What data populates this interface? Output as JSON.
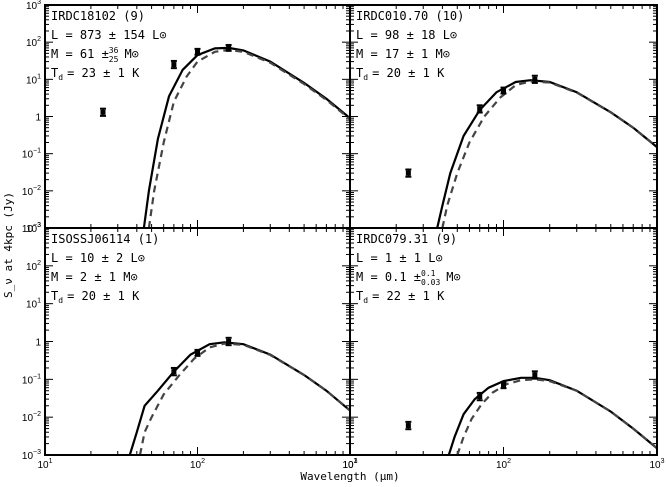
{
  "figure": {
    "xlabel": "Wavelength (μm)",
    "ylabel": "S_ν at 4kpc (Jy)"
  },
  "colors": {
    "solid": "#000000",
    "dashed": "#444444",
    "frame": "#000000"
  },
  "chart_data": [
    {
      "type": "line",
      "panel": "top-left",
      "title": "",
      "xscale": "log",
      "yscale": "log",
      "xlim": [
        10,
        1000
      ],
      "ylim": [
        0.001,
        1000
      ],
      "annotations": {
        "name": "IRDC18102 (9)",
        "L": "L = 873 ± 154 L⊙",
        "M_main": "M = 61 ±",
        "M_up": "36",
        "M_down": "25",
        "M_unit": "M⊙",
        "Td": "T",
        "Td_sub": "d",
        "Td_val": "= 23 ± 1 K"
      },
      "points": [
        {
          "x": 24,
          "y": 1.3,
          "yerr_factor": 1.25
        },
        {
          "x": 70,
          "y": 25,
          "yerr_factor": 1.25
        },
        {
          "x": 100,
          "y": 55,
          "yerr_factor": 1.2
        },
        {
          "x": 160,
          "y": 70,
          "yerr_factor": 1.2
        }
      ],
      "series": [
        {
          "style": "solid",
          "x": [
            44.5,
            48,
            55,
            65,
            80,
            100,
            130,
            160,
            200,
            300,
            500,
            700,
            1000
          ],
          "y": [
            0.001,
            0.01,
            0.25,
            3.5,
            18,
            45,
            68,
            70,
            60,
            30,
            8,
            3,
            0.9
          ]
        },
        {
          "style": "dashed",
          "x": [
            48,
            52,
            60,
            70,
            85,
            100,
            130,
            160,
            200,
            300,
            500,
            700,
            1000
          ],
          "y": [
            0.001,
            0.01,
            0.2,
            2.5,
            12,
            30,
            55,
            62,
            55,
            28,
            7.5,
            2.8,
            0.85
          ]
        }
      ]
    },
    {
      "type": "line",
      "panel": "top-right",
      "title": "",
      "xscale": "log",
      "yscale": "log",
      "xlim": [
        10,
        1000
      ],
      "ylim": [
        0.001,
        1000
      ],
      "annotations": {
        "name": "IRDC010.70 (10)",
        "L": "L = 98 ± 18 L⊙",
        "M_main": "M = 17 ± 1 M⊙",
        "M_up": "",
        "M_down": "",
        "M_unit": "",
        "Td": "T",
        "Td_sub": "d",
        "Td_val": "= 20 ± 1 K"
      },
      "points": [
        {
          "x": 24,
          "y": 0.03,
          "yerr_factor": 1.25
        },
        {
          "x": 70,
          "y": 1.6,
          "yerr_factor": 1.25
        },
        {
          "x": 100,
          "y": 5,
          "yerr_factor": 1.2
        },
        {
          "x": 160,
          "y": 10,
          "yerr_factor": 1.25
        }
      ],
      "series": [
        {
          "style": "solid",
          "x": [
            37,
            40,
            45,
            55,
            70,
            90,
            120,
            150,
            200,
            300,
            500,
            700,
            1000
          ],
          "y": [
            0.001,
            0.004,
            0.03,
            0.3,
            1.5,
            4.5,
            8.5,
            9.5,
            8.5,
            4.5,
            1.3,
            0.5,
            0.15
          ]
        },
        {
          "style": "dashed",
          "x": [
            40,
            43,
            50,
            60,
            75,
            95,
            120,
            150,
            200,
            300,
            500,
            700,
            1000
          ],
          "y": [
            0.001,
            0.004,
            0.03,
            0.2,
            1.0,
            3.2,
            7.0,
            8.8,
            8.2,
            4.4,
            1.3,
            0.5,
            0.15
          ]
        }
      ]
    },
    {
      "type": "line",
      "panel": "bottom-left",
      "title": "",
      "xscale": "log",
      "yscale": "log",
      "xlim": [
        10,
        1000
      ],
      "ylim": [
        0.001,
        1000
      ],
      "annotations": {
        "name": "ISOSSJ06114 (1)",
        "L": "L = 10 ± 2 L⊙",
        "M_main": "M = 2 ± 1 M⊙",
        "M_up": "",
        "M_down": "",
        "M_unit": "",
        "Td": "T",
        "Td_sub": "d",
        "Td_val": "= 20 ± 1 K"
      },
      "points": [
        {
          "x": 70,
          "y": 0.16,
          "yerr_factor": 1.25
        },
        {
          "x": 100,
          "y": 0.5,
          "yerr_factor": 1.2
        },
        {
          "x": 160,
          "y": 1.0,
          "yerr_factor": 1.25
        }
      ],
      "series": [
        {
          "style": "solid",
          "x": [
            36,
            40,
            45,
            55,
            70,
            90,
            120,
            150,
            200,
            300,
            500,
            700,
            1000
          ],
          "y": [
            0.001,
            0.004,
            0.02,
            0.05,
            0.16,
            0.45,
            0.85,
            0.95,
            0.85,
            0.45,
            0.13,
            0.05,
            0.015
          ]
        },
        {
          "style": "dashed",
          "x": [
            42,
            45,
            50,
            60,
            75,
            95,
            120,
            150,
            200,
            300,
            500,
            700,
            1000
          ],
          "y": [
            0.001,
            0.004,
            0.01,
            0.04,
            0.12,
            0.35,
            0.7,
            0.88,
            0.82,
            0.44,
            0.13,
            0.05,
            0.015
          ]
        }
      ]
    },
    {
      "type": "line",
      "panel": "bottom-right",
      "title": "",
      "xscale": "log",
      "yscale": "log",
      "xlim": [
        10,
        1000
      ],
      "ylim": [
        0.001,
        1000
      ],
      "annotations": {
        "name": "IRDC079.31 (9)",
        "L": "L = 1 ± 1 L⊙",
        "M_main": "M = 0.1 ±",
        "M_up": "0.1",
        "M_down": "0.03",
        "M_unit": "M⊙",
        "Td": "T",
        "Td_sub": "d",
        "Td_val": "= 22 ± 1 K"
      },
      "points": [
        {
          "x": 24,
          "y": 0.006,
          "yerr_factor": 1.25
        },
        {
          "x": 70,
          "y": 0.035,
          "yerr_factor": 1.25
        },
        {
          "x": 100,
          "y": 0.07,
          "yerr_factor": 1.2
        },
        {
          "x": 160,
          "y": 0.13,
          "yerr_factor": 1.25
        }
      ],
      "series": [
        {
          "style": "solid",
          "x": [
            44,
            48,
            55,
            65,
            80,
            100,
            130,
            160,
            200,
            300,
            500,
            700,
            1000
          ],
          "y": [
            0.001,
            0.003,
            0.012,
            0.03,
            0.06,
            0.09,
            0.11,
            0.11,
            0.095,
            0.05,
            0.014,
            0.005,
            0.0015
          ]
        },
        {
          "style": "dashed",
          "x": [
            50,
            55,
            62,
            72,
            85,
            105,
            130,
            160,
            200,
            300,
            500,
            700,
            1000
          ],
          "y": [
            0.001,
            0.003,
            0.009,
            0.022,
            0.045,
            0.075,
            0.095,
            0.1,
            0.09,
            0.05,
            0.014,
            0.005,
            0.0015
          ]
        }
      ]
    }
  ]
}
